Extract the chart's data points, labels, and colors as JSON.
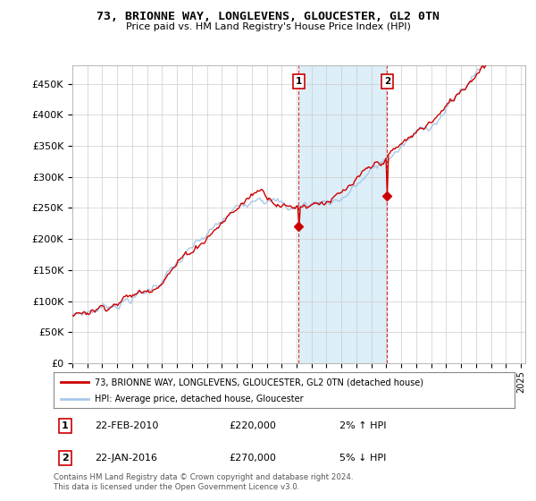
{
  "title": "73, BRIONNE WAY, LONGLEVENS, GLOUCESTER, GL2 0TN",
  "subtitle": "Price paid vs. HM Land Registry's House Price Index (HPI)",
  "ylabel_values": [
    0,
    50000,
    100000,
    150000,
    200000,
    250000,
    300000,
    350000,
    400000,
    450000
  ],
  "ylim": [
    0,
    480000
  ],
  "xlim_start": 1995.0,
  "xlim_end": 2025.3,
  "hpi_color": "#a8c8e8",
  "price_color": "#cc0000",
  "sale1_x": 2010.13,
  "sale1_y": 220000,
  "sale2_x": 2016.06,
  "sale2_y": 270000,
  "marker_color": "#cc0000",
  "vline_color": "#cc0000",
  "legend_label1": "73, BRIONNE WAY, LONGLEVENS, GLOUCESTER, GL2 0TN (detached house)",
  "legend_label2": "HPI: Average price, detached house, Gloucester",
  "annotation1_num": "1",
  "annotation2_num": "2",
  "ann1_date": "22-FEB-2010",
  "ann1_price": "£220,000",
  "ann1_hpi": "2% ↑ HPI",
  "ann2_date": "22-JAN-2016",
  "ann2_price": "£270,000",
  "ann2_hpi": "5% ↓ HPI",
  "footer": "Contains HM Land Registry data © Crown copyright and database right 2024.\nThis data is licensed under the Open Government Licence v3.0.",
  "bg_color": "#ffffff",
  "plot_bg_color": "#ffffff",
  "grid_color": "#cccccc",
  "highlight_color": "#dceef8"
}
